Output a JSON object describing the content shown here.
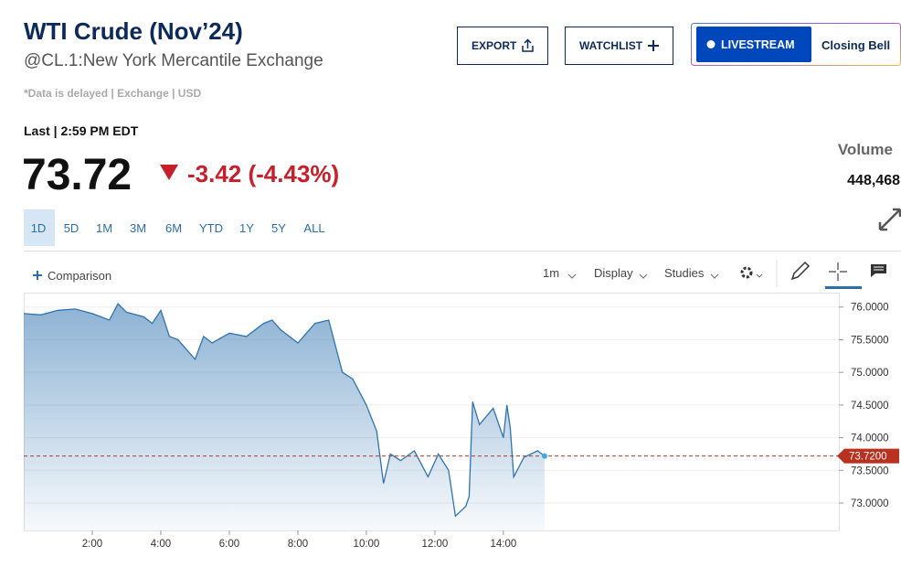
{
  "header": {
    "title": "WTI Crude (Nov’24)",
    "subtitle": "@CL.1:New York Mercantile Exchange",
    "note": "*Data is delayed | Exchange | USD"
  },
  "buttons": {
    "export": "EXPORT",
    "watchlist": "WATCHLIST",
    "livestream": "LIVESTREAM",
    "closing_bell": "Closing Bell"
  },
  "quote": {
    "last_label": "Last | 2:59 PM EDT",
    "price": "73.72",
    "change": "-3.42 (-4.43%)",
    "volume_label": "Volume",
    "volume": "448,468"
  },
  "ranges": [
    "1D",
    "5D",
    "1M",
    "3M",
    "6M",
    "YTD",
    "1Y",
    "5Y",
    "ALL"
  ],
  "toolbar": {
    "comparison": "Comparison",
    "interval": "1m",
    "display": "Display",
    "studies": "Studies"
  },
  "chart_data": {
    "type": "area",
    "color": "#2f73b0",
    "x": [
      0,
      0.5,
      1,
      1.5,
      2,
      2.5,
      2.75,
      3,
      3.5,
      3.75,
      4,
      4.25,
      4.5,
      5,
      5.25,
      5.5,
      6,
      6.5,
      7,
      7.25,
      7.5,
      8,
      8.25,
      8.5,
      8.9,
      9.1,
      9.3,
      9.6,
      10,
      10.3,
      10.5,
      10.7,
      11,
      11.4,
      11.8,
      12.1,
      12.4,
      12.6,
      12.9,
      13,
      13.1,
      13.3,
      13.7,
      14,
      14.1,
      14.2,
      14.3,
      14.6,
      15,
      15.2
    ],
    "values": [
      75.9,
      75.88,
      75.95,
      75.97,
      75.9,
      75.8,
      76.05,
      75.92,
      75.85,
      75.75,
      75.95,
      75.55,
      75.5,
      75.2,
      75.55,
      75.45,
      75.6,
      75.55,
      75.75,
      75.8,
      75.65,
      75.45,
      75.6,
      75.75,
      75.8,
      75.4,
      75.0,
      74.9,
      74.5,
      74.1,
      73.3,
      73.75,
      73.65,
      73.8,
      73.4,
      73.75,
      73.5,
      72.8,
      72.95,
      73.1,
      74.55,
      74.2,
      74.45,
      74.0,
      74.5,
      74.15,
      73.4,
      73.7,
      73.8,
      73.72
    ],
    "xlim": [
      0,
      23.79
    ],
    "xticks": [
      {
        "value": 2,
        "label": "2:00"
      },
      {
        "value": 4,
        "label": "4:00"
      },
      {
        "value": 6,
        "label": "6:00"
      },
      {
        "value": 8,
        "label": "8:00"
      },
      {
        "value": 10,
        "label": "10:00"
      },
      {
        "value": 12,
        "label": "12:00"
      },
      {
        "value": 14,
        "label": "14:00"
      }
    ],
    "ylim": [
      72.58,
      76.22
    ],
    "yticks": [
      {
        "value": 73,
        "label": "73.0000"
      },
      {
        "value": 73.5,
        "label": "73.5000"
      },
      {
        "value": 74,
        "label": "74.0000"
      },
      {
        "value": 74.5,
        "label": "74.5000"
      },
      {
        "value": 75,
        "label": "75.0000"
      },
      {
        "value": 75.5,
        "label": "75.5000"
      },
      {
        "value": 76,
        "label": "76.0000"
      }
    ],
    "last": {
      "value": 73.72,
      "label": "73.7200"
    },
    "grid": true
  }
}
